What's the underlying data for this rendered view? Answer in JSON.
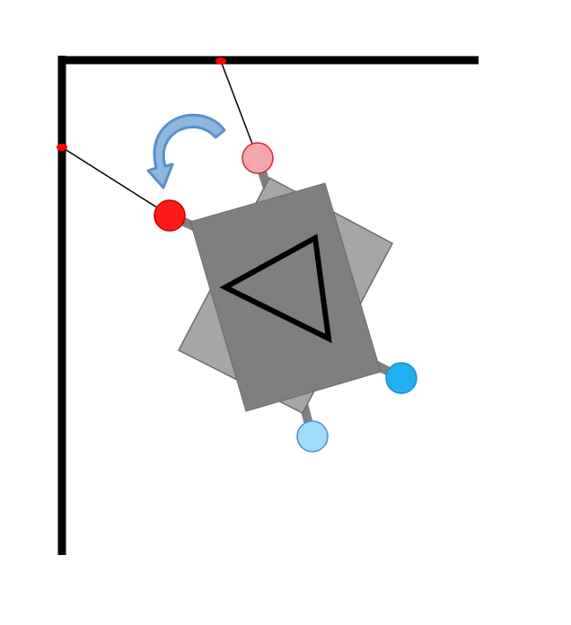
{
  "diagram": {
    "colors": {
      "frame": "#000000",
      "anchor": "#ff0000",
      "string": "#000000",
      "rotation_arrow_fill": "#8fb6e0",
      "rotation_arrow_stroke": "#5a8fc8",
      "ghost_plate": "#a6a6a6",
      "main_plate": "#7f7f7f",
      "plate_edge": "#6b6b6b",
      "triangle_ghost": "#595959",
      "triangle_main": "#000000",
      "connector": "#808080",
      "pin_red": "#ff1a1a",
      "pin_red_stroke": "#c00000",
      "pin_pink": "#f4a6ad",
      "pin_pink_stroke": "#d22b2b",
      "pin_blue": "#1fb0ef",
      "pin_blue_stroke": "#1a8fd0",
      "pin_lightblue": "#9fdcf9",
      "pin_lightblue_stroke": "#4a90c8"
    },
    "icons": [
      "frame-corner",
      "anchor-point",
      "rotation-arrow-icon",
      "plate",
      "triangle"
    ]
  }
}
